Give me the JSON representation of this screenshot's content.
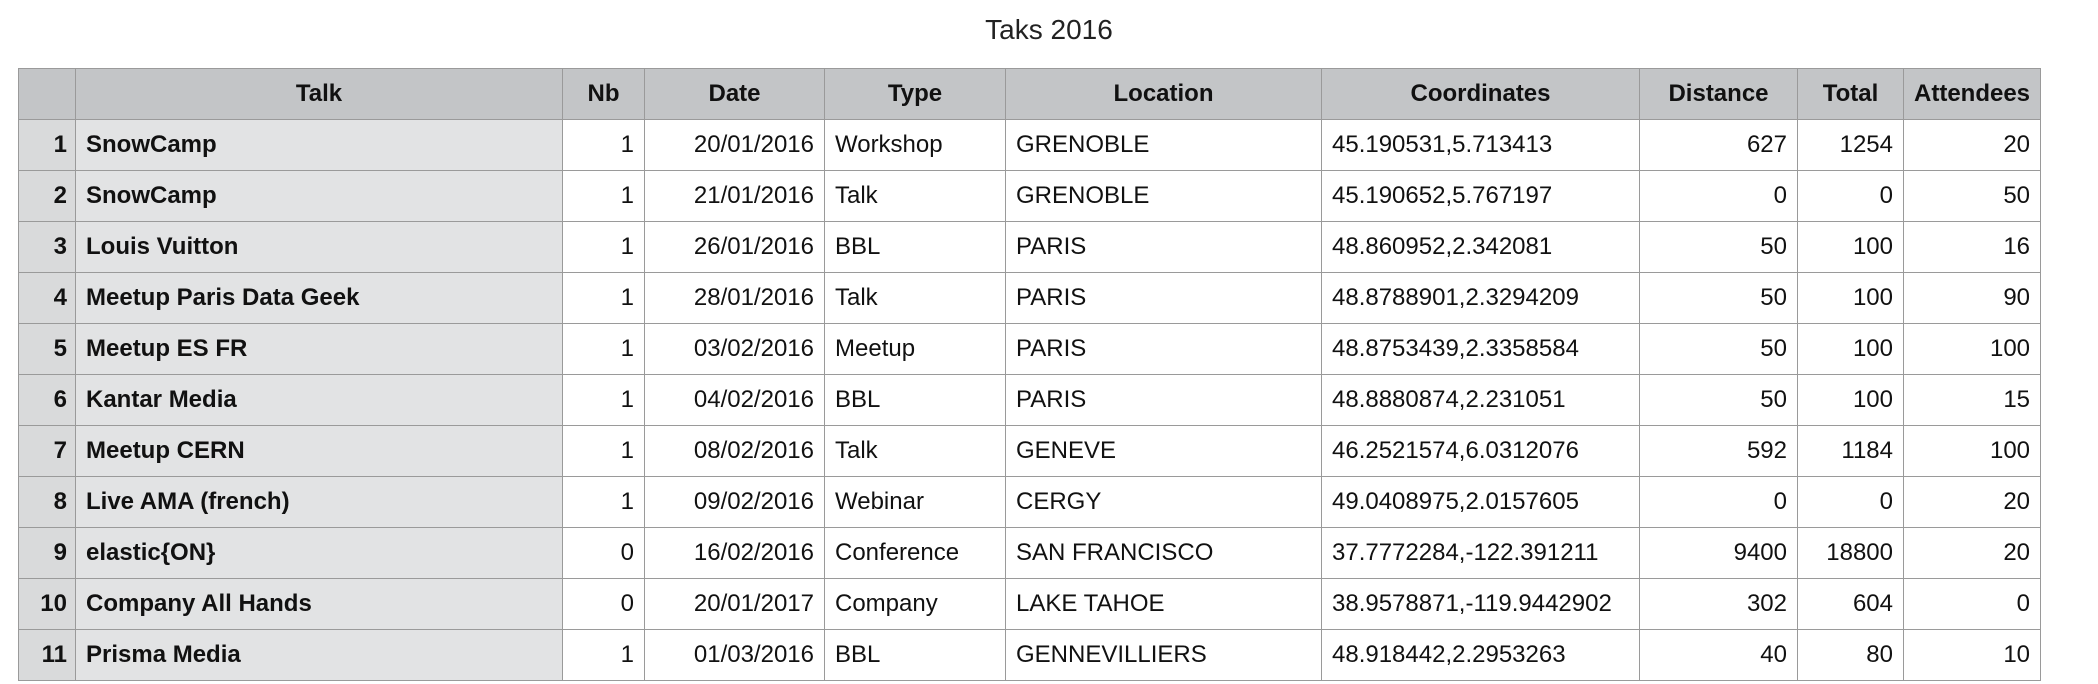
{
  "title": "Taks 2016",
  "columns": [
    "",
    "Talk",
    "Nb",
    "Date",
    "Type",
    "Location",
    "Coordinates",
    "Distance",
    "Total",
    "Attendees"
  ],
  "rows": [
    {
      "n": "1",
      "talk": "SnowCamp",
      "nb": "1",
      "date": "20/01/2016",
      "type": "Workshop",
      "location": "GRENOBLE",
      "coords": "45.190531,5.713413",
      "distance": "627",
      "total": "1254",
      "attendees": "20"
    },
    {
      "n": "2",
      "talk": "SnowCamp",
      "nb": "1",
      "date": "21/01/2016",
      "type": "Talk",
      "location": "GRENOBLE",
      "coords": "45.190652,5.767197",
      "distance": "0",
      "total": "0",
      "attendees": "50"
    },
    {
      "n": "3",
      "talk": "Louis Vuitton",
      "nb": "1",
      "date": "26/01/2016",
      "type": "BBL",
      "location": "PARIS",
      "coords": "48.860952,2.342081",
      "distance": "50",
      "total": "100",
      "attendees": "16"
    },
    {
      "n": "4",
      "talk": "Meetup Paris Data Geek",
      "nb": "1",
      "date": "28/01/2016",
      "type": "Talk",
      "location": "PARIS",
      "coords": "48.8788901,2.3294209",
      "distance": "50",
      "total": "100",
      "attendees": "90"
    },
    {
      "n": "5",
      "talk": "Meetup ES FR",
      "nb": "1",
      "date": "03/02/2016",
      "type": "Meetup",
      "location": "PARIS",
      "coords": "48.8753439,2.3358584",
      "distance": "50",
      "total": "100",
      "attendees": "100"
    },
    {
      "n": "6",
      "talk": "Kantar Media",
      "nb": "1",
      "date": "04/02/2016",
      "type": "BBL",
      "location": "PARIS",
      "coords": "48.8880874,2.231051",
      "distance": "50",
      "total": "100",
      "attendees": "15"
    },
    {
      "n": "7",
      "talk": "Meetup CERN",
      "nb": "1",
      "date": "08/02/2016",
      "type": "Talk",
      "location": "GENEVE",
      "coords": "46.2521574,6.0312076",
      "distance": "592",
      "total": "1184",
      "attendees": "100"
    },
    {
      "n": "8",
      "talk": "Live AMA (french)",
      "nb": "1",
      "date": "09/02/2016",
      "type": "Webinar",
      "location": "CERGY",
      "coords": "49.0408975,2.0157605",
      "distance": "0",
      "total": "0",
      "attendees": "20"
    },
    {
      "n": "9",
      "talk": "elastic{ON}",
      "nb": "0",
      "date": "16/02/2016",
      "type": "Conference",
      "location": "SAN FRANCISCO",
      "coords": "37.7772284,-122.391211",
      "distance": "9400",
      "total": "18800",
      "attendees": "20"
    },
    {
      "n": "10",
      "talk": "Company All Hands",
      "nb": "0",
      "date": "20/01/2017",
      "type": "Company",
      "location": "LAKE TAHOE",
      "coords": "38.9578871,-119.9442902",
      "distance": "302",
      "total": "604",
      "attendees": "0"
    },
    {
      "n": "11",
      "talk": "Prisma Media",
      "nb": "1",
      "date": "01/03/2016",
      "type": "BBL",
      "location": "GENNEVILLIERS",
      "coords": "48.918442,2.2953263",
      "distance": "40",
      "total": "80",
      "attendees": "10"
    }
  ]
}
